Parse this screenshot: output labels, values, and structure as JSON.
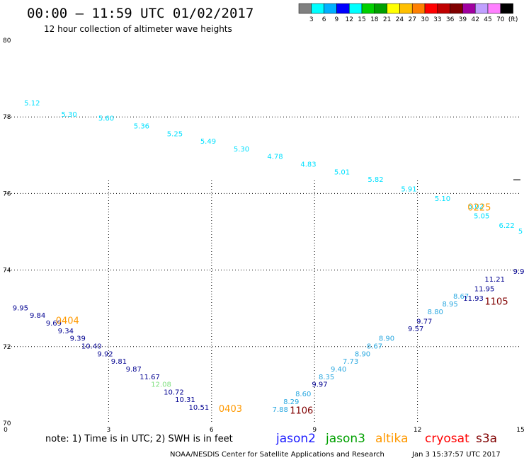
{
  "header": {
    "title": "00:00 – 11:59 UTC 01/02/2017",
    "subtitle": "12 hour collection of altimeter wave heights"
  },
  "colorbar": {
    "colors": [
      "#808080",
      "#00ffff",
      "#00b0ff",
      "#0000ff",
      "#00ffff",
      "#00d000",
      "#00a000",
      "#ffff00",
      "#ffc000",
      "#ff8000",
      "#ff0000",
      "#c00000",
      "#800000",
      "#a000a0",
      "#c0a0ff",
      "#ff80ff",
      "#000000"
    ],
    "labels": [
      "3",
      "6",
      "9",
      "12",
      "15",
      "18",
      "21",
      "24",
      "27",
      "30",
      "33",
      "36",
      "39",
      "42",
      "45",
      "70",
      "(ft)"
    ]
  },
  "chart_data": {
    "type": "scatter",
    "title": "00:00 – 11:59 UTC 01/02/2017",
    "subtitle": "12 hour collection of altimeter wave heights",
    "xlabel": "",
    "ylabel": "",
    "xlim": [
      0,
      15
    ],
    "ylim": [
      70,
      80
    ],
    "x_ticks": [
      "0",
      "3",
      "6",
      "9",
      "12",
      "15"
    ],
    "y_ticks": [
      "70",
      "72",
      "74",
      "76",
      "78",
      "80"
    ],
    "grid": true,
    "series": [
      {
        "name": "",
        "color": "#00e0ff",
        "points": [
          {
            "x": 0.77,
            "y": 78.3,
            "label": "5.12"
          },
          {
            "x": 1.85,
            "y": 78.0,
            "label": "5.30"
          },
          {
            "x": 2.93,
            "y": 77.9,
            "label": "5.60"
          },
          {
            "x": 3.96,
            "y": 77.7,
            "label": "5.36"
          },
          {
            "x": 4.93,
            "y": 77.5,
            "label": "5.25"
          },
          {
            "x": 5.9,
            "y": 77.3,
            "label": "5.49"
          },
          {
            "x": 6.87,
            "y": 77.1,
            "label": "5.30"
          },
          {
            "x": 7.85,
            "y": 76.9,
            "label": "4.78"
          },
          {
            "x": 8.82,
            "y": 76.7,
            "label": "4.83"
          },
          {
            "x": 9.8,
            "y": 76.5,
            "label": "5.01"
          },
          {
            "x": 10.78,
            "y": 76.3,
            "label": "5.82"
          },
          {
            "x": 11.75,
            "y": 76.05,
            "label": "5.91"
          },
          {
            "x": 12.73,
            "y": 75.8,
            "label": "5.10"
          },
          {
            "x": 13.7,
            "y": 75.6,
            "label": "5.02"
          },
          {
            "x": 13.87,
            "y": 75.35,
            "label": "5.05"
          },
          {
            "x": 14.6,
            "y": 75.1,
            "label": "6.22"
          },
          {
            "x": 15.0,
            "y": 74.95,
            "label": "5"
          }
        ]
      },
      {
        "name": "",
        "color": "#000090",
        "points": [
          {
            "x": 0.43,
            "y": 72.95,
            "label": "9.95"
          },
          {
            "x": 0.93,
            "y": 72.75,
            "label": "9.84"
          },
          {
            "x": 1.4,
            "y": 72.55,
            "label": "9.69"
          },
          {
            "x": 1.75,
            "y": 72.35,
            "label": "9.34"
          },
          {
            "x": 2.1,
            "y": 72.15,
            "label": "9.39"
          },
          {
            "x": 2.5,
            "y": 71.95,
            "label": "10.40"
          },
          {
            "x": 2.9,
            "y": 71.75,
            "label": "9.92"
          },
          {
            "x": 3.3,
            "y": 71.55,
            "label": "9.81"
          },
          {
            "x": 3.73,
            "y": 71.35,
            "label": "9.87"
          },
          {
            "x": 4.2,
            "y": 71.15,
            "label": "11.67"
          },
          {
            "x": 4.9,
            "y": 70.75,
            "label": "10.72"
          },
          {
            "x": 5.23,
            "y": 70.55,
            "label": "10.31"
          },
          {
            "x": 5.63,
            "y": 70.35,
            "label": "10.51"
          },
          {
            "x": 9.15,
            "y": 70.95,
            "label": "9.97"
          },
          {
            "x": 11.95,
            "y": 72.4,
            "label": "9.57"
          },
          {
            "x": 12.2,
            "y": 72.6,
            "label": "9.77"
          },
          {
            "x": 13.63,
            "y": 73.2,
            "label": "11.93"
          },
          {
            "x": 13.95,
            "y": 73.45,
            "label": "11.95"
          },
          {
            "x": 14.25,
            "y": 73.7,
            "label": "11.21"
          },
          {
            "x": 14.95,
            "y": 73.9,
            "label": "9.9"
          }
        ]
      },
      {
        "name": "",
        "color": "#2aa8e0",
        "points": [
          {
            "x": 8.0,
            "y": 70.3,
            "label": "7.88"
          },
          {
            "x": 8.32,
            "y": 70.5,
            "label": "8.29"
          },
          {
            "x": 8.67,
            "y": 70.7,
            "label": "8.60"
          },
          {
            "x": 9.35,
            "y": 71.15,
            "label": "8.35"
          },
          {
            "x": 9.7,
            "y": 71.35,
            "label": "9.40"
          },
          {
            "x": 10.05,
            "y": 71.55,
            "label": "7.73"
          },
          {
            "x": 10.4,
            "y": 71.75,
            "label": "8.90"
          },
          {
            "x": 10.75,
            "y": 71.95,
            "label": "8.67"
          },
          {
            "x": 11.1,
            "y": 72.15,
            "label": "8.90"
          },
          {
            "x": 12.52,
            "y": 72.85,
            "label": "8.80"
          },
          {
            "x": 12.95,
            "y": 73.05,
            "label": "8.95"
          },
          {
            "x": 13.27,
            "y": 73.25,
            "label": "8.67"
          }
        ]
      },
      {
        "name": "",
        "color": "#80e080",
        "points": [
          {
            "x": 4.53,
            "y": 70.95,
            "label": "12.08"
          }
        ]
      }
    ],
    "time_labels": [
      {
        "x": 1.8,
        "y": 72.6,
        "label": "0404",
        "color": "#ff9900"
      },
      {
        "x": 6.55,
        "y": 70.3,
        "label": "0403",
        "color": "#ff9900"
      },
      {
        "x": 13.8,
        "y": 75.55,
        "label": "0225",
        "color": "#ff9900"
      },
      {
        "x": 8.62,
        "y": 70.25,
        "label": "1106",
        "color": "#800000"
      },
      {
        "x": 14.3,
        "y": 73.1,
        "label": "1105",
        "color": "#800000"
      }
    ]
  },
  "footer": {
    "note": "note: 1) Time is in UTC; 2) SWH is in feet",
    "satellites": [
      {
        "name": "jason2",
        "color": "#1a1aff"
      },
      {
        "name": "jason3",
        "color": "#00a000"
      },
      {
        "name": "altika",
        "color": "#ff9900"
      },
      {
        "name": "cryosat",
        "color": "#ff0000"
      },
      {
        "name": "s3a",
        "color": "#800000"
      }
    ],
    "credit": "NOAA/NESDIS Center for Satellite Applications and Research",
    "timestamp": "Jan  3 15:37:57 UTC 2017"
  }
}
